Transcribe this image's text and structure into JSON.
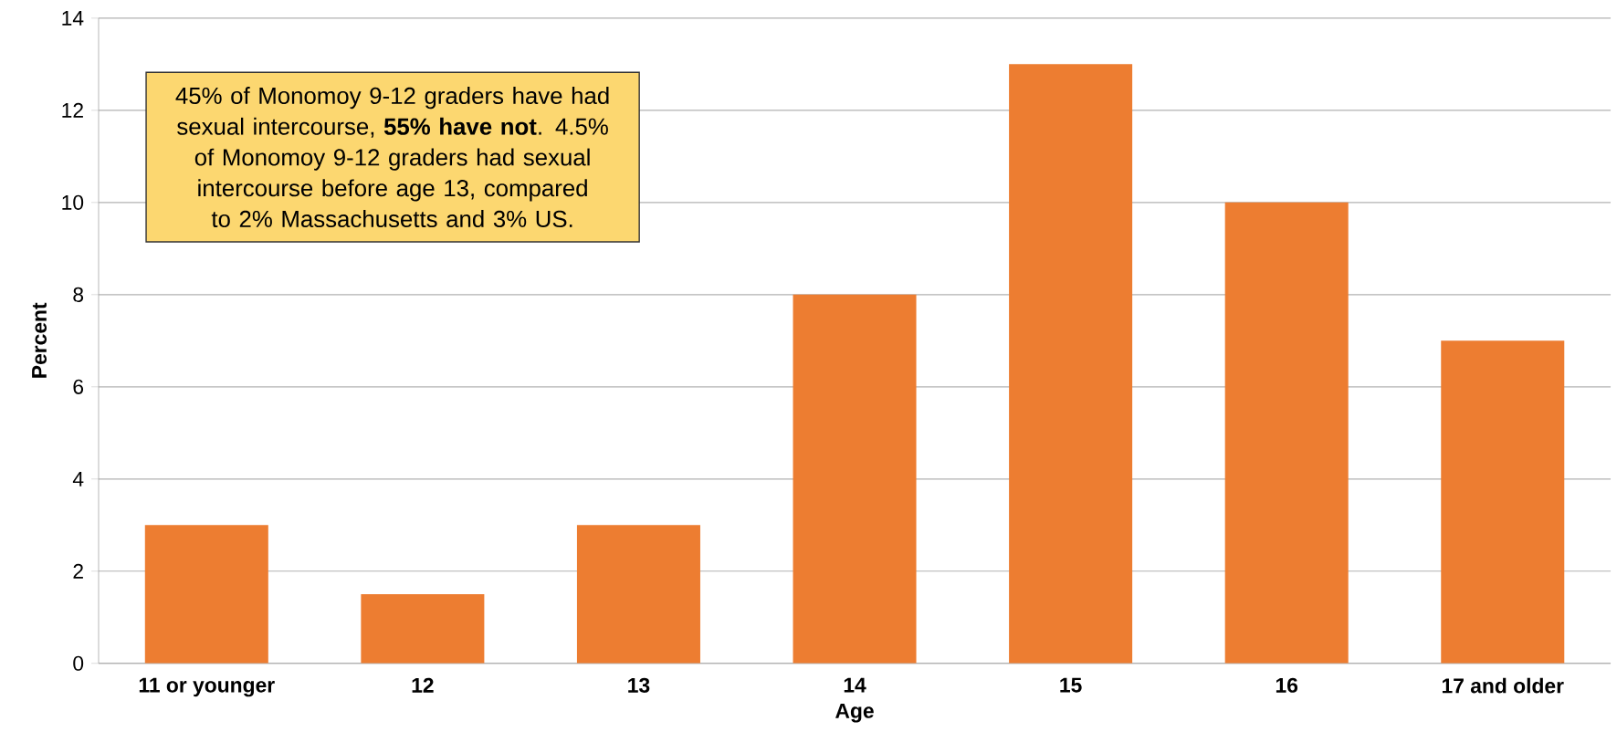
{
  "chart_data": {
    "type": "bar",
    "xlabel": "Age",
    "ylabel": "Percent",
    "categories": [
      "11 or younger",
      "12",
      "13",
      "14",
      "15",
      "16",
      "17 and older"
    ],
    "values": [
      3,
      1.5,
      3,
      8,
      13,
      10,
      7
    ],
    "color": "#ed7d31",
    "ylim": [
      0,
      14
    ],
    "yticks": [
      0,
      2,
      4,
      6,
      8,
      10,
      12,
      14
    ],
    "grid": "y",
    "annotations": [
      "45% of Monomoy 9-12 graders have had sexual intercourse, **55% have not**. 4.5% of Monomoy 9-12 graders had sexual intercourse before age 13, compared to 2% Massachusetts and 3% US."
    ]
  }
}
